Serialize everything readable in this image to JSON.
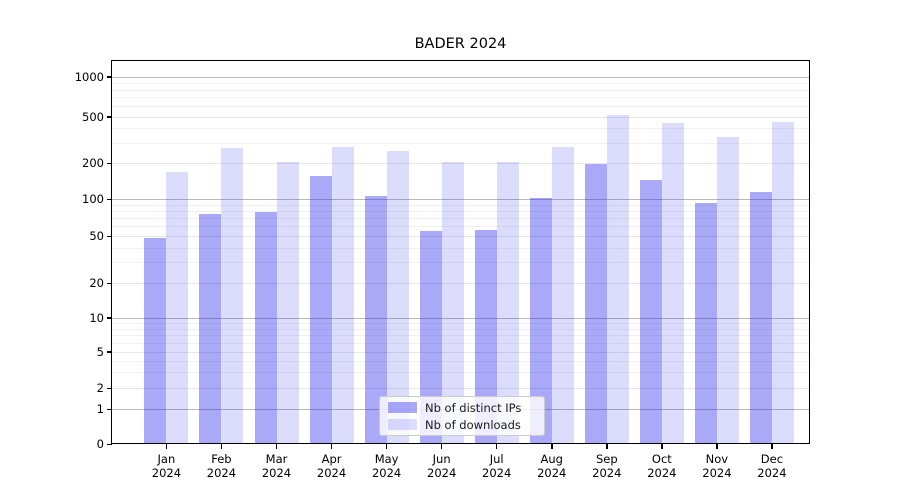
{
  "title": "BADER 2024",
  "chart_data": {
    "type": "bar",
    "title": "BADER 2024",
    "categories": [
      "Jan",
      "Feb",
      "Mar",
      "Apr",
      "May",
      "Jun",
      "Jul",
      "Aug",
      "Sep",
      "Oct",
      "Nov",
      "Dec"
    ],
    "category_year": "2024",
    "series": [
      {
        "name": "Nb of distinct IPs",
        "color": "rgba(40,40,235,0.40)",
        "values": [
          48,
          76,
          78,
          158,
          107,
          55,
          56,
          103,
          198,
          144,
          94,
          116
        ]
      },
      {
        "name": "Nb of downloads",
        "color": "rgba(40,40,235,0.16)",
        "values": [
          170,
          272,
          205,
          278,
          256,
          205,
          206,
          275,
          515,
          438,
          337,
          448
        ]
      }
    ],
    "y_axis": {
      "scale": "symlog",
      "ticks": [
        0,
        1,
        2,
        5,
        10,
        20,
        50,
        100,
        200,
        500,
        1000
      ],
      "minor_ticks": [
        3,
        4,
        6,
        7,
        8,
        9,
        30,
        40,
        60,
        70,
        80,
        90,
        300,
        400,
        600,
        700,
        800,
        900
      ],
      "range": [
        0,
        1000
      ]
    },
    "legend": {
      "position": "lower center"
    },
    "grid": true
  }
}
